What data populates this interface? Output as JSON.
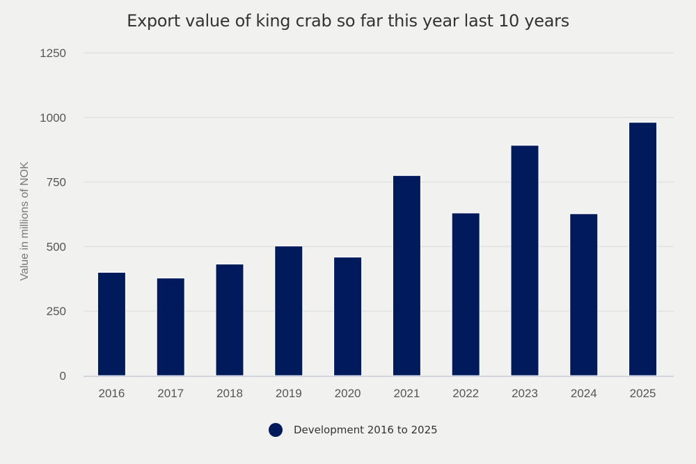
{
  "chart_data": {
    "type": "bar",
    "title": "Export value of king crab so far this year last 10 years",
    "xlabel": "",
    "ylabel": "Value in millions of NOK",
    "categories": [
      "2016",
      "2017",
      "2018",
      "2019",
      "2020",
      "2021",
      "2022",
      "2023",
      "2024",
      "2025"
    ],
    "series": [
      {
        "name": "Development 2016 to 2025",
        "color": "#001a5c",
        "values": [
          400,
          378,
          432,
          502,
          459,
          775,
          630,
          892,
          627,
          981
        ]
      }
    ],
    "ylim": [
      0,
      1250
    ],
    "yticks": [
      0,
      250,
      500,
      750,
      1000,
      1250
    ],
    "grid": true,
    "legend": "bottom-center"
  }
}
